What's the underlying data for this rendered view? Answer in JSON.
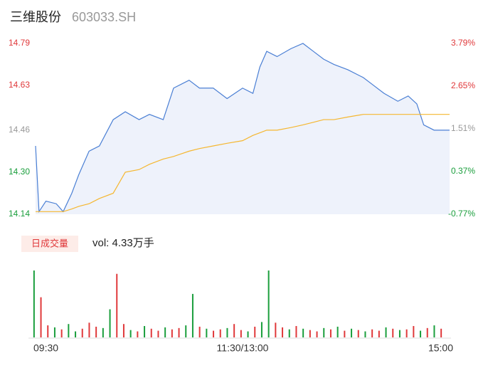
{
  "header": {
    "name": "三维股份",
    "code": "603033.SH"
  },
  "chart_data": [
    {
      "type": "line",
      "x": [
        0,
        2,
        6,
        12,
        16,
        21,
        25,
        31,
        37,
        45,
        52,
        60,
        66,
        74,
        80,
        89,
        95,
        103,
        111,
        120,
        126,
        130,
        134,
        140,
        148,
        155,
        161,
        167,
        173,
        181,
        190,
        196,
        202,
        210,
        216,
        221,
        225,
        231,
        240
      ],
      "xlim": [
        0,
        240
      ],
      "series": [
        {
          "color": "#4a7fd4",
          "fill": "#eef2fb",
          "values": [
            14.4,
            14.15,
            14.19,
            14.18,
            14.15,
            14.22,
            14.29,
            14.38,
            14.4,
            14.5,
            14.53,
            14.5,
            14.52,
            14.5,
            14.62,
            14.65,
            14.62,
            14.62,
            14.58,
            14.62,
            14.6,
            14.7,
            14.76,
            14.74,
            14.77,
            14.79,
            14.76,
            14.73,
            14.71,
            14.69,
            14.66,
            14.63,
            14.6,
            14.57,
            14.59,
            14.56,
            14.48,
            14.46,
            14.46
          ]
        },
        {
          "color": "#f5b730",
          "values": [
            14.15,
            14.15,
            14.15,
            14.15,
            14.15,
            14.16,
            14.17,
            14.18,
            14.2,
            14.22,
            14.3,
            14.31,
            14.33,
            14.35,
            14.36,
            14.38,
            14.39,
            14.4,
            14.41,
            14.42,
            14.44,
            14.45,
            14.46,
            14.46,
            14.47,
            14.48,
            14.49,
            14.5,
            14.5,
            14.51,
            14.52,
            14.52,
            14.52,
            14.52,
            14.52,
            14.52,
            14.52,
            14.52,
            14.52
          ]
        }
      ],
      "ylim": [
        14.14,
        14.79
      ],
      "yticks": [
        {
          "value": 14.79,
          "label": "14.79"
        },
        14.63,
        14.46,
        {
          "value": 14.3,
          "label": "14.30"
        },
        14.14
      ],
      "y2lim": [
        -0.77,
        3.79
      ],
      "y2ticks": [
        {
          "value": 3.79,
          "label": "3.79%"
        },
        {
          "value": 2.65,
          "label": "2.65%"
        },
        {
          "value": 1.51,
          "label": "1.51%"
        },
        {
          "value": 0.37,
          "label": "0.37%"
        },
        {
          "value": -0.77,
          "label": "-0.77%"
        }
      ],
      "tick_colors": [
        "#e0393b",
        "#e0393b",
        "#999999",
        "#1a9e3c",
        "#1a9e3c"
      ]
    },
    {
      "type": "bar",
      "title": "日成交量",
      "annotation": "vol: 4.33万手",
      "xlim": [
        0,
        240
      ],
      "xticks": [
        {
          "value": 0,
          "label": "09:30"
        },
        {
          "value": 120,
          "label": "11:30/13:00"
        },
        {
          "value": 240,
          "label": "15:00"
        }
      ],
      "ylim": [
        0,
        1000
      ],
      "up_color": "#e0393b",
      "down_color": "#1a9e3c",
      "values": [
        1000,
        600,
        180,
        150,
        120,
        200,
        90,
        130,
        220,
        160,
        140,
        420,
        950,
        200,
        110,
        90,
        170,
        130,
        100,
        150,
        120,
        140,
        180,
        650,
        160,
        130,
        100,
        120,
        140,
        200,
        110,
        90,
        160,
        230,
        1000,
        220,
        150,
        120,
        170,
        130,
        110,
        90,
        140,
        120,
        160,
        100,
        130,
        110,
        90,
        120,
        100,
        150,
        130,
        110,
        120,
        170,
        100,
        140,
        180,
        130
      ],
      "up": [
        false,
        true,
        true,
        false,
        true,
        false,
        false,
        true,
        true,
        true,
        false,
        false,
        true,
        true,
        false,
        true,
        false,
        true,
        true,
        false,
        true,
        true,
        false,
        false,
        true,
        false,
        true,
        true,
        false,
        true,
        true,
        false,
        true,
        false,
        false,
        true,
        true,
        false,
        true,
        false,
        true,
        true,
        false,
        true,
        false,
        true,
        false,
        true,
        false,
        true,
        true,
        false,
        true,
        false,
        true,
        true,
        false,
        true,
        false,
        true
      ]
    }
  ]
}
